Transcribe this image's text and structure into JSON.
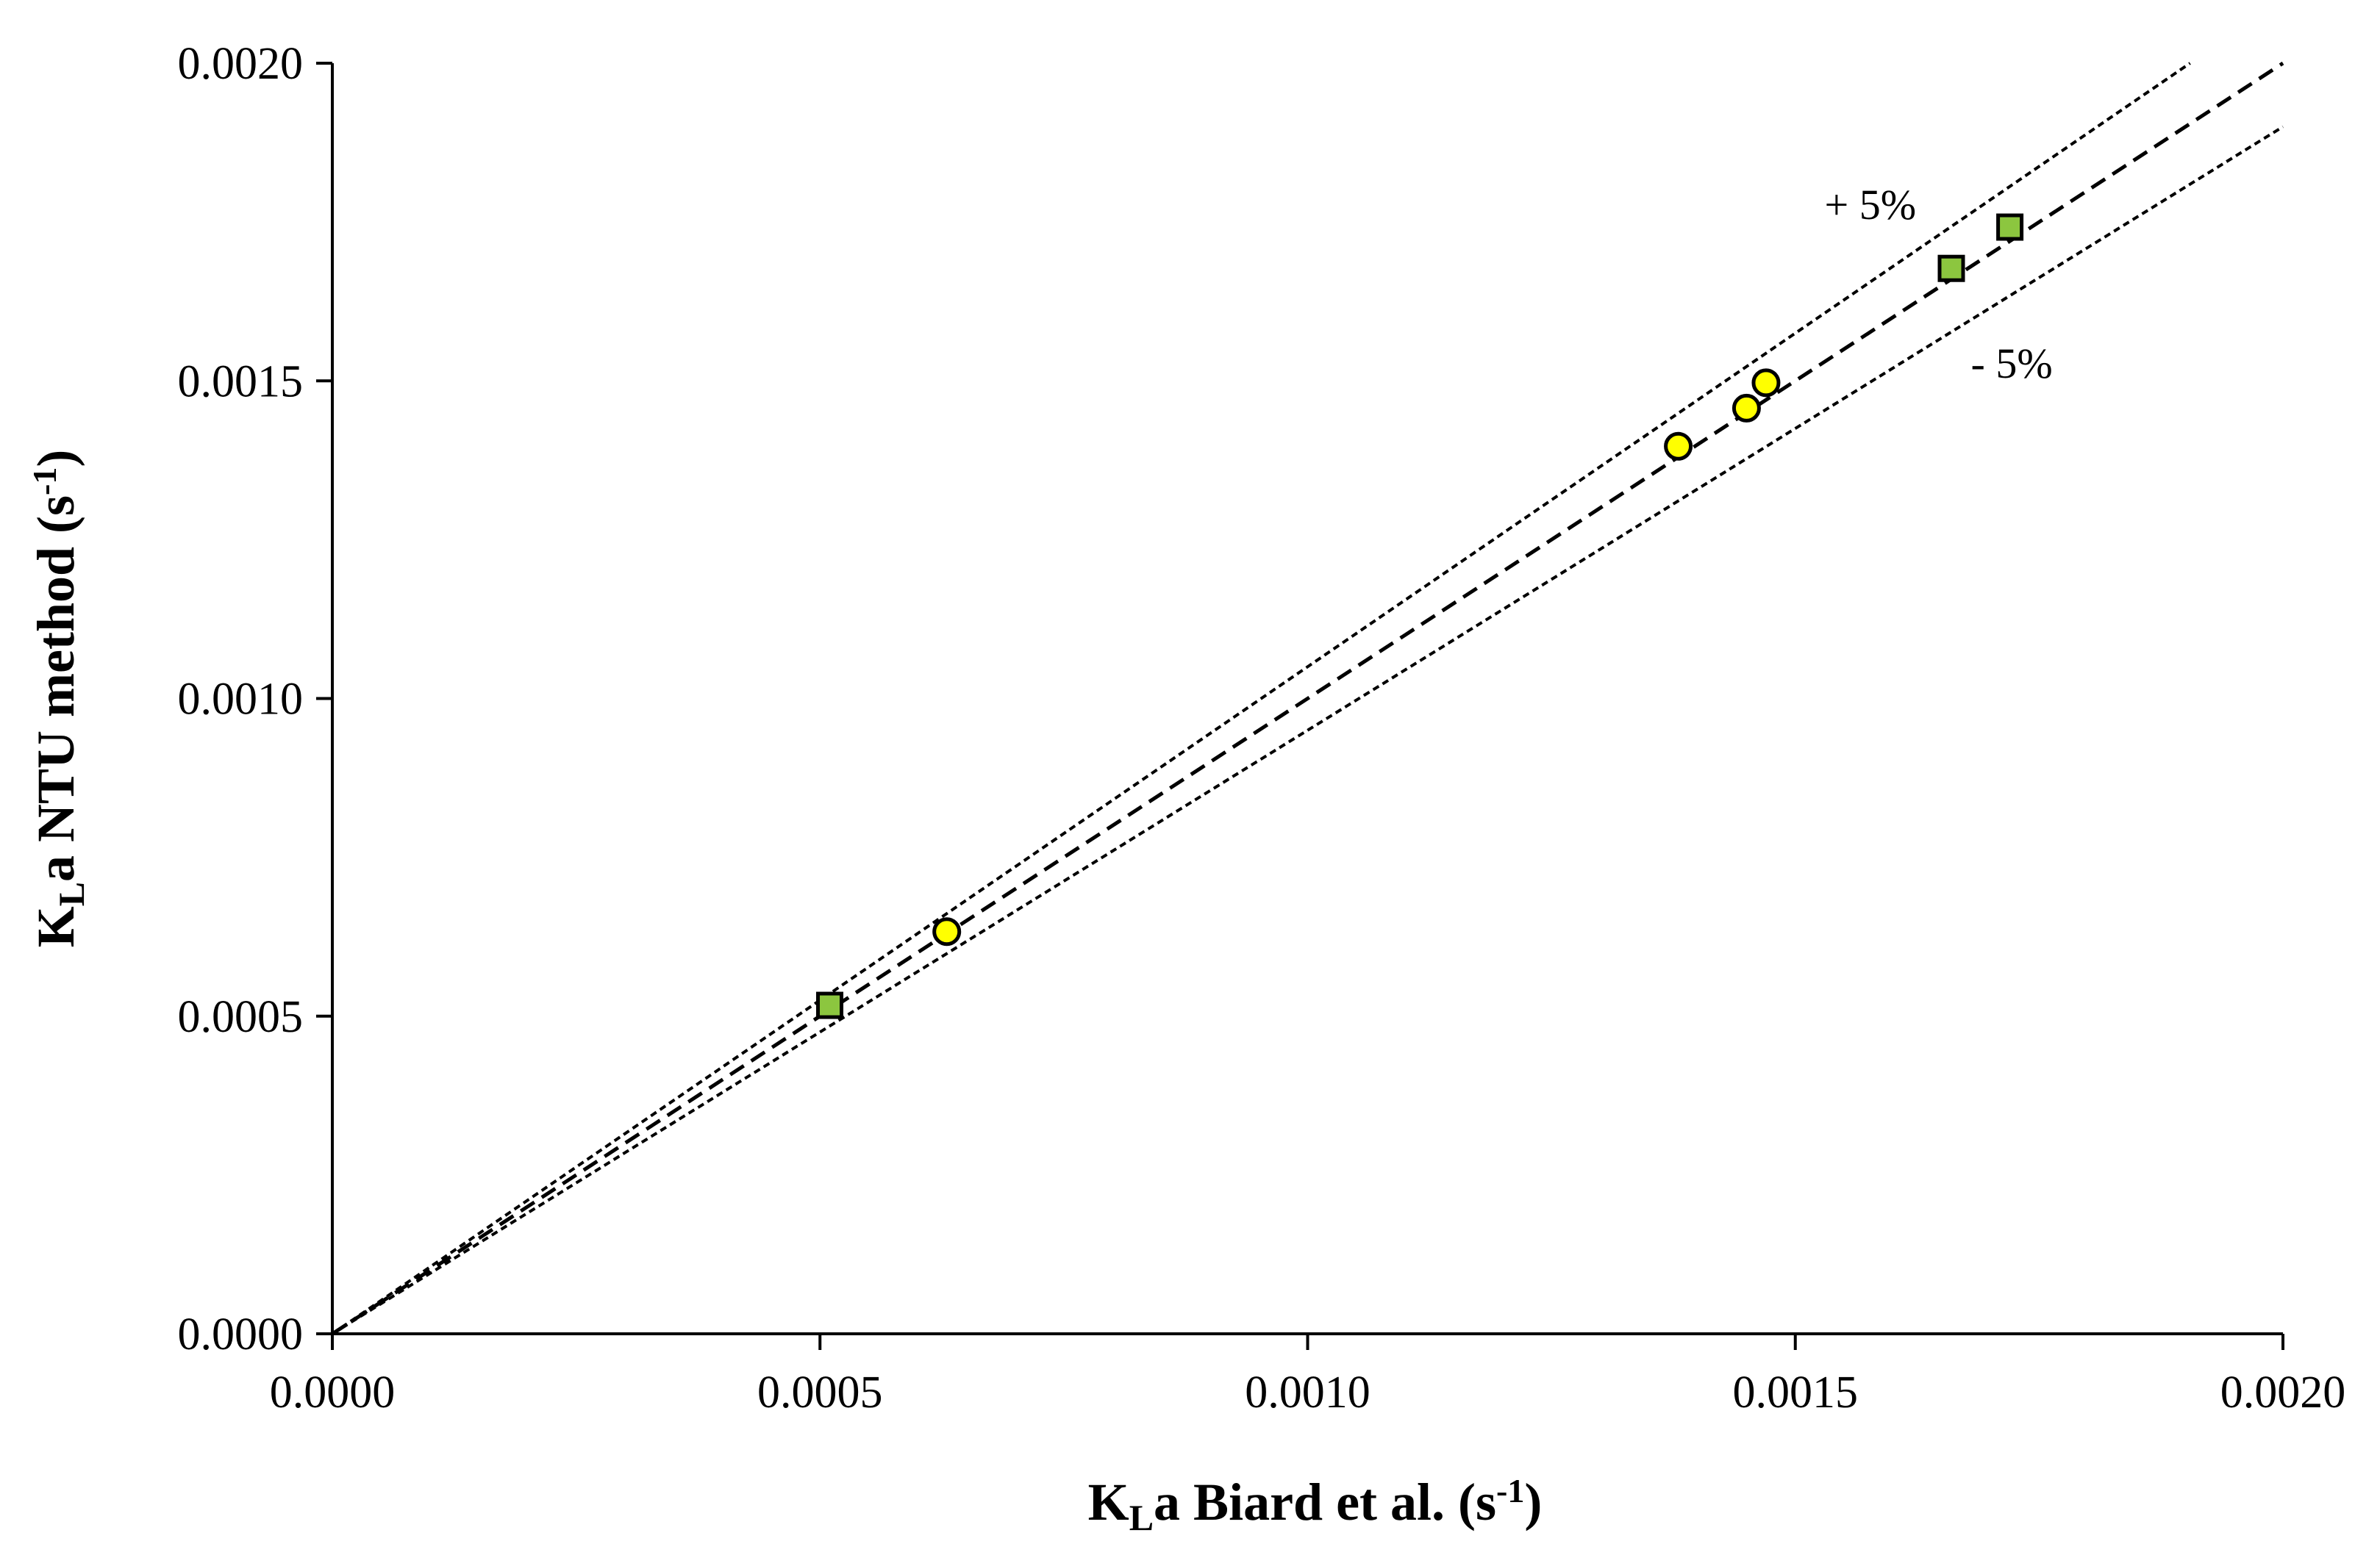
{
  "chart_data": {
    "type": "scatter",
    "xlabel": {
      "prefix": "K",
      "subscript": "L",
      "middle": "a Biard et al. (s",
      "superscript": "-1",
      "suffix": ")"
    },
    "ylabel": {
      "prefix": "K",
      "subscript": "L",
      "middle": "a NTU method (s",
      "superscript": "-1",
      "suffix": ")"
    },
    "xlim": [
      0,
      0.002
    ],
    "ylim": [
      0,
      0.002
    ],
    "x_ticks": [
      {
        "value": 0,
        "label": "0.0000"
      },
      {
        "value": 0.0005,
        "label": "0.0005"
      },
      {
        "value": 0.001,
        "label": "0.0010"
      },
      {
        "value": 0.0015,
        "label": "0.0015"
      },
      {
        "value": 0.002,
        "label": "0.0020"
      }
    ],
    "y_ticks": [
      {
        "value": 0,
        "label": "0.0000"
      },
      {
        "value": 0.0005,
        "label": "0.0005"
      },
      {
        "value": 0.001,
        "label": "0.0010"
      },
      {
        "value": 0.0015,
        "label": "0.0015"
      },
      {
        "value": 0.002,
        "label": "0.0020"
      }
    ],
    "grid": false,
    "legend": "none",
    "series": [
      {
        "marker": "square",
        "fill_color": "#8cc63f",
        "edge_color": "#000000",
        "points": [
          {
            "x": 0.00051,
            "y": 0.000517
          },
          {
            "x": 0.00166,
            "y": 0.001677
          },
          {
            "x": 0.00172,
            "y": 0.001742
          }
        ]
      },
      {
        "marker": "circle",
        "fill_color": "#ffff00",
        "edge_color": "#000000",
        "points": [
          {
            "x": 0.00063,
            "y": 0.000633
          },
          {
            "x": 0.00138,
            "y": 0.001397
          },
          {
            "x": 0.00145,
            "y": 0.001457
          },
          {
            "x": 0.00147,
            "y": 0.001497
          }
        ]
      }
    ],
    "reference_lines": [
      {
        "kind": "identity",
        "slope": 1.0,
        "style": "long-dash"
      },
      {
        "kind": "plus",
        "slope": 1.05,
        "style": "short-dash"
      },
      {
        "kind": "minus",
        "slope": 0.95,
        "style": "short-dash"
      }
    ],
    "annotations": [
      {
        "text": "+ 5%",
        "x": 0.00153,
        "y": 0.001755
      },
      {
        "text": "- 5%",
        "x": 0.00168,
        "y": 0.001505
      }
    ],
    "colors": {
      "axis": "#000000",
      "square_fill": "#8cc63f",
      "circle_fill": "#ffff00",
      "background": "#ffffff"
    }
  }
}
